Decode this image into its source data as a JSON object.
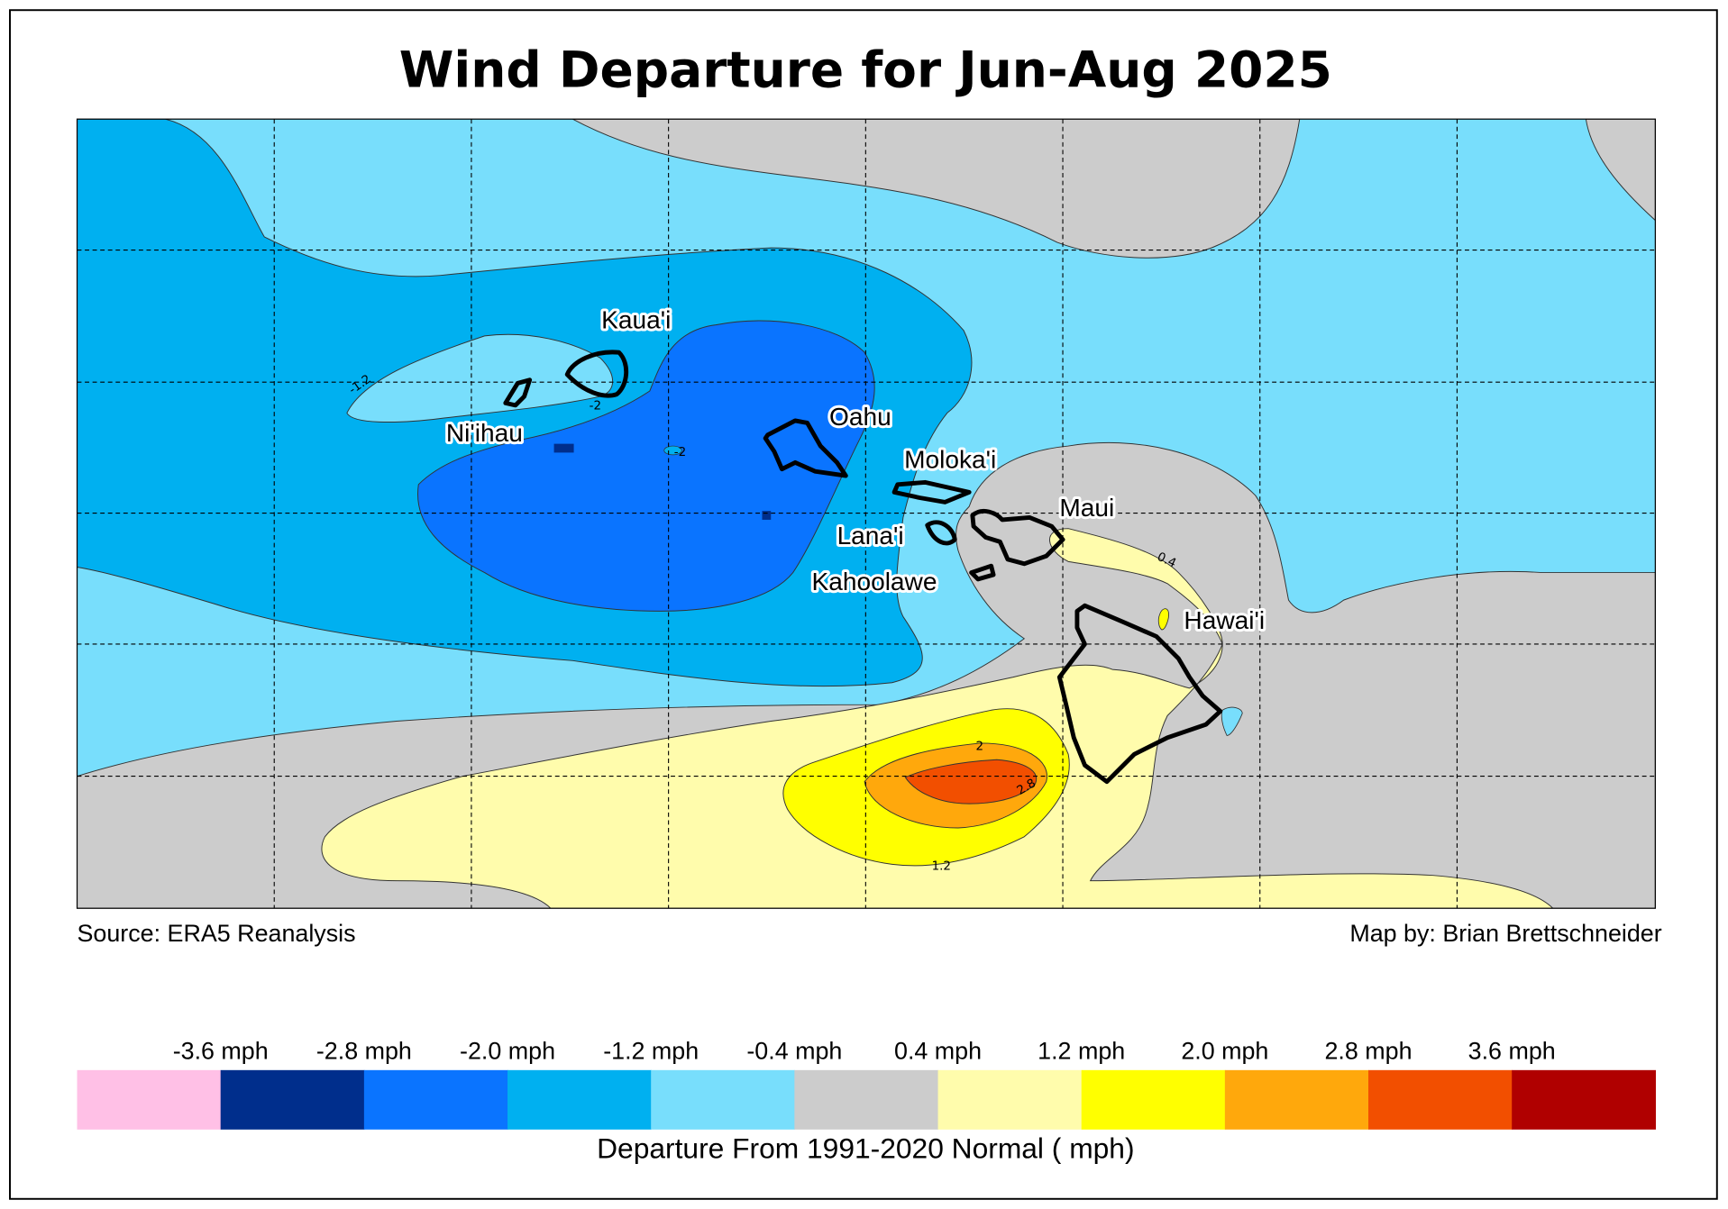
{
  "title": "Wind Departure for Jun-Aug 2025",
  "source": "Source: ERA5 Reanalysis",
  "credit": "Map by: Brian Brettschneider",
  "islands": {
    "kauai": "Kaua'i",
    "niihau": "Ni'ihau",
    "oahu": "Oahu",
    "molokai": "Moloka'i",
    "maui": "Maui",
    "lanai": "Lana'i",
    "kahoolawe": "Kahoolawe",
    "hawaii": "Hawai'i"
  },
  "contour_labels": {
    "c1": "-1.2",
    "c2": "-2",
    "c3": "-2",
    "c4": "0.4",
    "c5": "2",
    "c6": "2.8",
    "c7": "1.2"
  },
  "colorbar": {
    "title": "Departure From 1991-2020 Normal ( mph)",
    "ticks": [
      "-3.6 mph",
      "-2.8 mph",
      "-2.0 mph",
      "-1.2 mph",
      "-0.4 mph",
      "0.4 mph",
      "1.2 mph",
      "2.0 mph",
      "2.8 mph",
      "3.6 mph"
    ],
    "colors": [
      "#ffc0e6",
      "#002e8c",
      "#0a74ff",
      "#00b0f0",
      "#78defc",
      "#cccccc",
      "#fffcac",
      "#ffff00",
      "#ffa80c",
      "#f24f00",
      "#b00000"
    ]
  }
}
